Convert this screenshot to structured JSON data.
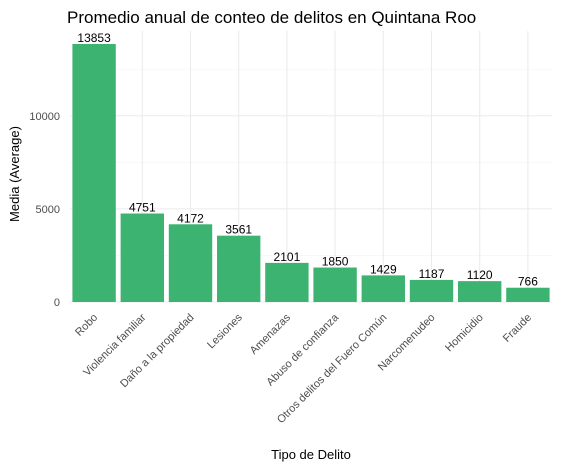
{
  "chart_data": {
    "type": "bar",
    "title": "Promedio anual de conteo de delitos en Quintana Roo",
    "xlabel": "Tipo de Delito",
    "ylabel": "Media (Average)",
    "categories": [
      "Robo",
      "Violencia familiar",
      "Daño a la propiedad",
      "Lesiones",
      "Amenazas",
      "Abuso de confianza",
      "Otros delitos del Fuero Común",
      "Narcomenudeo",
      "Homicidio",
      "Fraude"
    ],
    "values": [
      13853,
      4751,
      4172,
      3561,
      2101,
      1850,
      1429,
      1187,
      1120,
      766
    ],
    "data_labels": [
      "13853",
      "4751",
      "4172",
      "3561",
      "2101",
      "1850",
      "1429",
      "1187",
      "1120",
      "766"
    ],
    "y_ticks": [
      0,
      5000,
      10000
    ],
    "y_tick_labels": [
      "0",
      "5000",
      "10000"
    ],
    "ylim": [
      0,
      14550
    ],
    "grid": true,
    "legend": "none",
    "bar_color": "#3cb371"
  }
}
